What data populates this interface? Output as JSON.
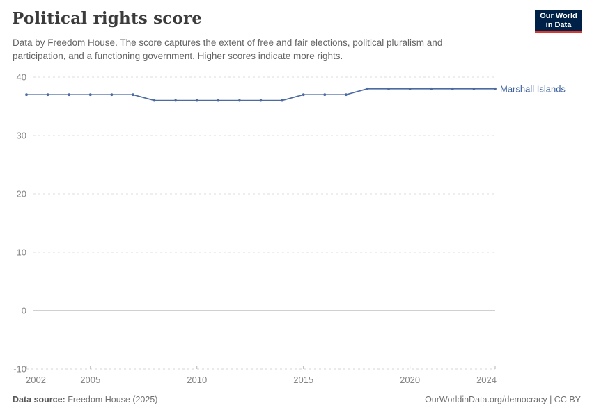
{
  "header": {
    "title": "Political rights score",
    "subtitle": "Data by Freedom House. The score captures the extent of free and fair elections, political pluralism and participation, and a functioning government. Higher scores indicate more rights.",
    "logo": {
      "line1": "Our World",
      "line2": "in Data"
    }
  },
  "chart_data": {
    "type": "line",
    "title": "Political rights score",
    "series": [
      {
        "name": "Marshall Islands",
        "color": "#4c6ba3",
        "label_color": "#3d619e",
        "x": [
          2002,
          2003,
          2004,
          2005,
          2006,
          2007,
          2008,
          2009,
          2010,
          2011,
          2012,
          2013,
          2014,
          2015,
          2016,
          2017,
          2018,
          2019,
          2020,
          2021,
          2022,
          2023,
          2024
        ],
        "values": [
          37,
          37,
          37,
          37,
          37,
          37,
          36,
          36,
          36,
          36,
          36,
          36,
          36,
          37,
          37,
          37,
          38,
          38,
          38,
          38,
          38,
          38,
          38
        ]
      }
    ],
    "x_ticks": [
      2002,
      2005,
      2010,
      2015,
      2020,
      2024
    ],
    "y_ticks": [
      40,
      30,
      20,
      10,
      0,
      -10
    ],
    "xlim": [
      2002,
      2024
    ],
    "ylim": [
      -10,
      40
    ],
    "grid": "horizontal-dashed",
    "legend": "line-end-label"
  },
  "footer": {
    "source_label": "Data source:",
    "source_value": "Freedom House (2025)",
    "right": "OurWorldinData.org/democracy | CC BY"
  },
  "colors": {
    "logo_bg": "#002147",
    "logo_accent": "#dd362c",
    "grid": "#dedede",
    "zero_line": "#a0a0a0",
    "axis_line": "#d6d6d6",
    "tick": "#b5b5b5",
    "tick_label": "#858585"
  }
}
